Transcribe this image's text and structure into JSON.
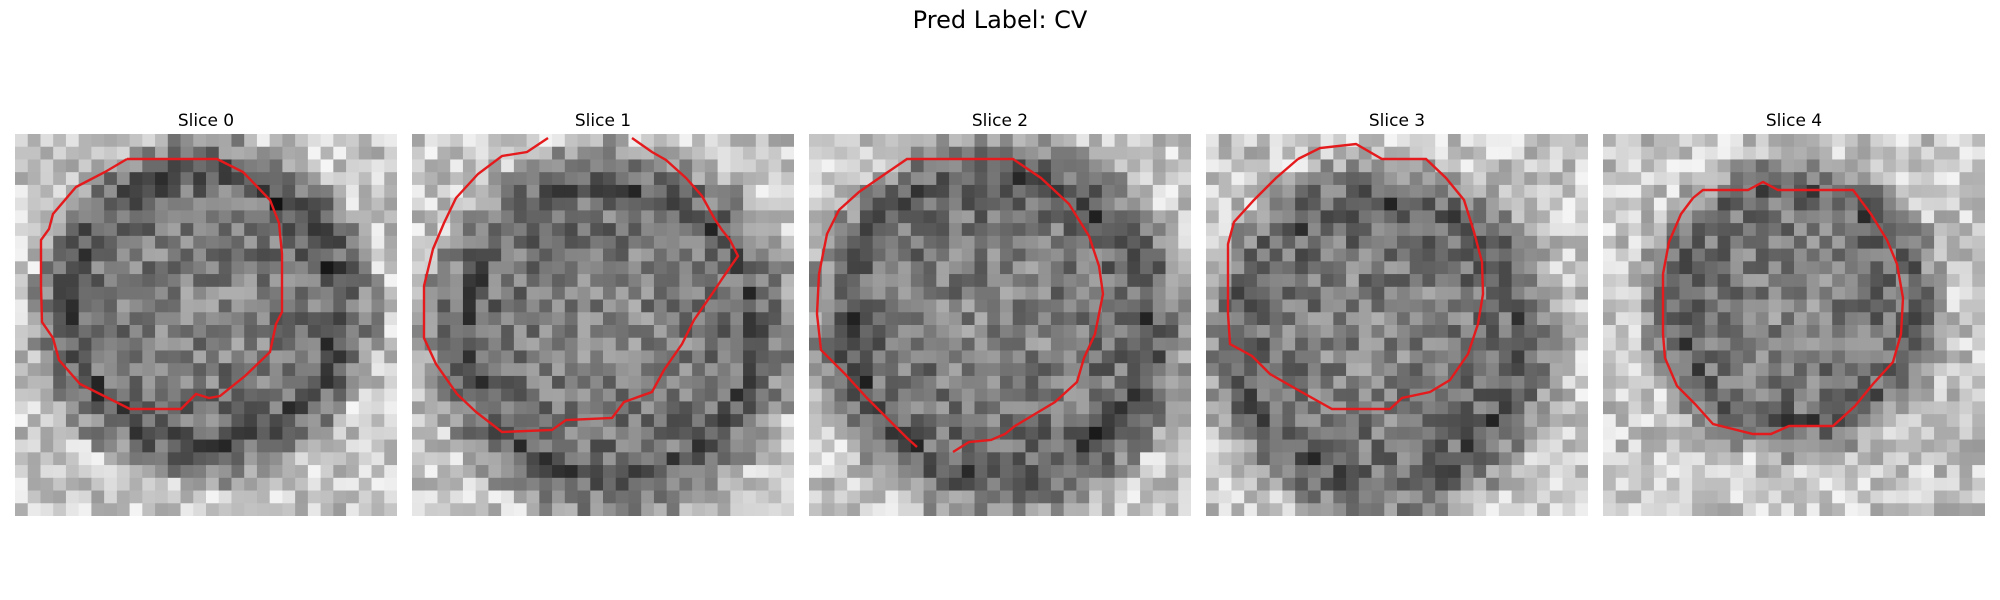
{
  "figure": {
    "title": "Pred Label: CV"
  },
  "panels": [
    {
      "title": "Slice 0",
      "image": "grayscale-noise-slice",
      "contour_color": "#e41a1c"
    },
    {
      "title": "Slice 1",
      "image": "grayscale-noise-slice",
      "contour_color": "#e41a1c"
    },
    {
      "title": "Slice 2",
      "image": "grayscale-noise-slice",
      "contour_color": "#e41a1c"
    },
    {
      "title": "Slice 3",
      "image": "grayscale-noise-slice",
      "contour_color": "#e41a1c"
    },
    {
      "title": "Slice 4",
      "image": "grayscale-noise-slice",
      "contour_color": "#e41a1c"
    }
  ]
}
